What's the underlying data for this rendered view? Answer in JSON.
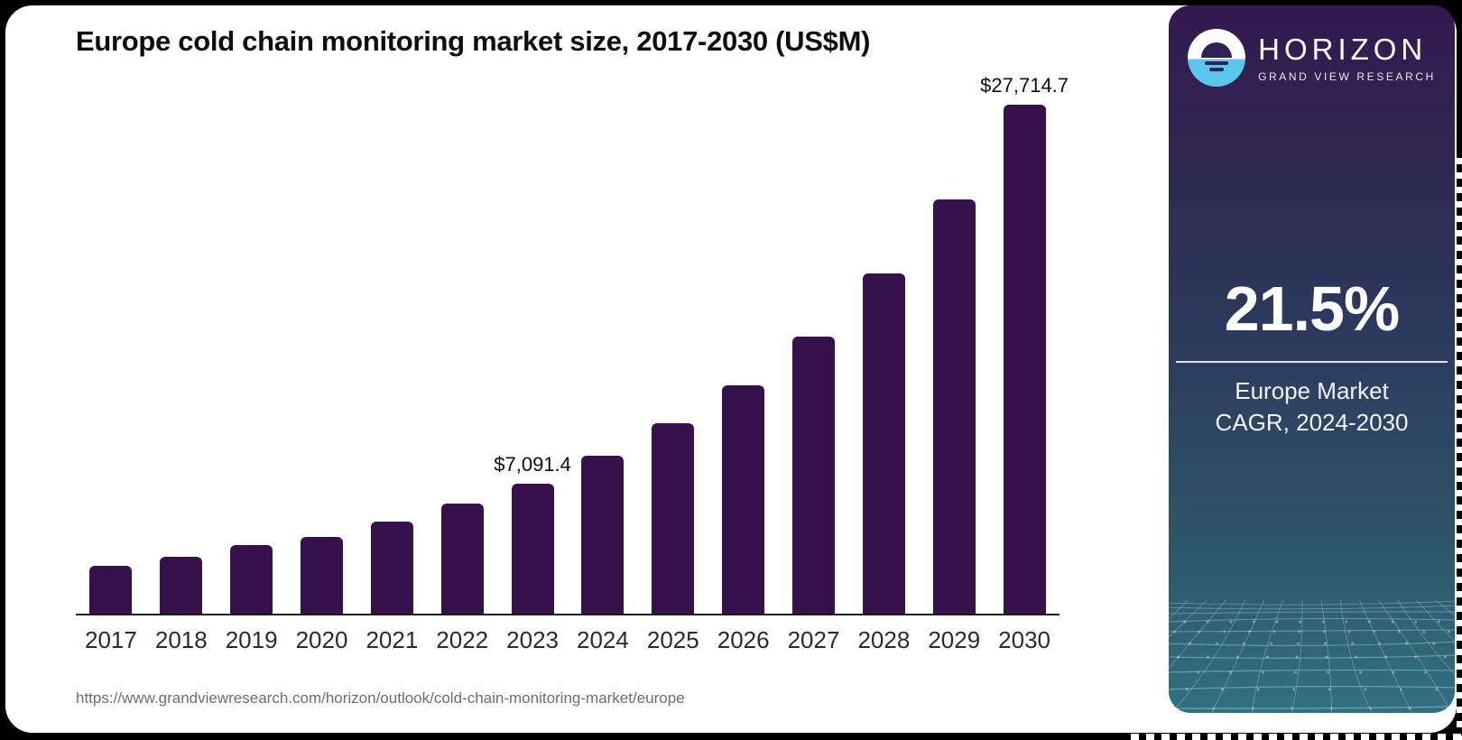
{
  "page": {
    "background": "#000000",
    "card_background": "#ffffff"
  },
  "chart": {
    "title": "Europe cold chain monitoring market size, 2017-2030 (US$M)",
    "source_url": "https://www.grandviewresearch.com/horizon/outlook/cold-chain-monitoring-market/europe"
  },
  "chart_data": {
    "type": "bar",
    "title": "Europe cold chain monitoring market size, 2017-2030 (US$M)",
    "unit": "US$M",
    "categories": [
      "2017",
      "2018",
      "2019",
      "2020",
      "2021",
      "2022",
      "2023",
      "2024",
      "2025",
      "2026",
      "2027",
      "2028",
      "2029",
      "2030"
    ],
    "values": [
      2605,
      3095,
      3735,
      4175,
      5010,
      6000,
      7091.4,
      8600,
      10370,
      12430,
      15090,
      18525,
      22555,
      27714.7
    ],
    "data_labels": {
      "2023": "$7,091.4",
      "2030": "$27,714.7"
    },
    "ylim": [
      0,
      27714.7
    ],
    "xlabel": "",
    "ylabel": "",
    "grid": false,
    "legend": false,
    "bar_color": "#36114B"
  },
  "sidebar": {
    "brand": {
      "name": "HORIZON",
      "tagline": "GRAND VIEW RESEARCH"
    },
    "stat": {
      "value": "21.5%",
      "caption": [
        "Europe Market",
        "CAGR, 2024-2030"
      ]
    },
    "colors": {
      "accent_blue": "#5BC6EC",
      "gradient_top": "#33194E",
      "gradient_middle": "#2B3A5E",
      "gradient_bottom": "#317083",
      "mesh_line": "#CFE3E8"
    }
  }
}
